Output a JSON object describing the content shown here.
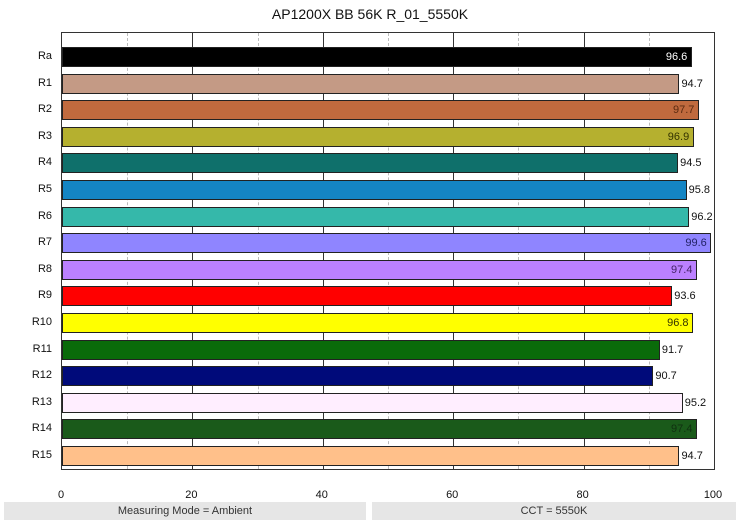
{
  "chart_data": {
    "type": "bar",
    "orientation": "horizontal",
    "title": "AP1200X BB 56K R_01_5550K",
    "xlabel": "",
    "ylabel": "",
    "xlim": [
      0,
      100
    ],
    "xticks": [
      0,
      20,
      40,
      60,
      80,
      100
    ],
    "grid": {
      "major_every": 20,
      "minor_every": 10
    },
    "categories": [
      "Ra",
      "R1",
      "R2",
      "R3",
      "R4",
      "R5",
      "R6",
      "R7",
      "R8",
      "R9",
      "R10",
      "R11",
      "R12",
      "R13",
      "R14",
      "R15"
    ],
    "values": [
      96.6,
      94.7,
      97.7,
      96.9,
      94.5,
      95.8,
      96.2,
      99.6,
      97.4,
      93.6,
      96.8,
      91.7,
      90.7,
      95.2,
      97.4,
      94.7
    ],
    "colors": [
      "#000000",
      "#c49a85",
      "#c06a3e",
      "#b5b02f",
      "#0f706b",
      "#1485c4",
      "#35b8aa",
      "#8f85ff",
      "#bb80ff",
      "#ff0000",
      "#ffff00",
      "#0a6b0a",
      "#000a7a",
      "#ffeeff",
      "#1a5a1a",
      "#ffc08a"
    ],
    "value_label_inside": [
      true,
      false,
      true,
      true,
      false,
      false,
      false,
      true,
      true,
      false,
      true,
      false,
      false,
      false,
      true,
      false
    ],
    "value_label_colors": [
      "#ffffff",
      "#111111",
      "#5a2a10",
      "#333300",
      "#111111",
      "#111111",
      "#111111",
      "#222266",
      "#442266",
      "#111111",
      "#333300",
      "#111111",
      "#111111",
      "#111111",
      "#103010",
      "#111111"
    ]
  },
  "footer": {
    "left": "Measuring Mode = Ambient",
    "right": "CCT = 5550K"
  }
}
